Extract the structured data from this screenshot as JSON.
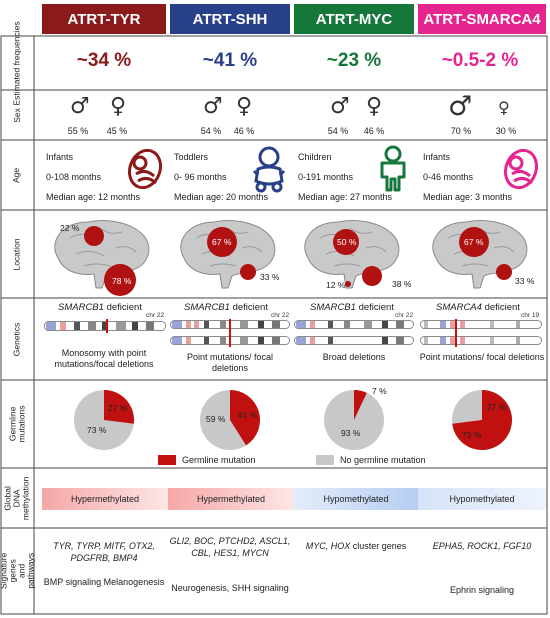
{
  "headers": [
    {
      "label": "ATRT-TYR",
      "color": "#8b1a1a"
    },
    {
      "label": "ATRT-SHH",
      "color": "#283f8a"
    },
    {
      "label": "ATRT-MYC",
      "color": "#15773a"
    },
    {
      "label": "ATRT-SMARCA4",
      "color": "#e5248f"
    }
  ],
  "row_labels": {
    "frequencies": "Estimated frequencies",
    "sex": "Sex",
    "age": "Age",
    "location": "Location",
    "genetics": "Genetics",
    "germline": "Germline mutations",
    "methylation": "Global DNA methylation",
    "signature": "Signature genes and pathways"
  },
  "frequencies": [
    {
      "value": "~34 %",
      "color": "#8b1a1a"
    },
    {
      "value": "~41 %",
      "color": "#283f8a"
    },
    {
      "value": "~23 %",
      "color": "#15773a"
    },
    {
      "value": "~0.5-2 %",
      "color": "#e5248f"
    }
  ],
  "sex": [
    {
      "male": "55 %",
      "female": "45 %"
    },
    {
      "male": "54 %",
      "female": "46 %"
    },
    {
      "male": "54 %",
      "female": "46 %"
    },
    {
      "male": "70 %",
      "female": "30 %"
    }
  ],
  "age": [
    {
      "group": "Infants",
      "range": "0-108 months",
      "median": "Median age: 12 months",
      "icon": "infant-icon",
      "color": "#8b1a1a"
    },
    {
      "group": "Toddlers",
      "range": "0- 96 months",
      "median": "Median age: 20 months",
      "icon": "toddler-icon",
      "color": "#283f8a"
    },
    {
      "group": "Children",
      "range": "0-191 months",
      "median": "Median age: 27 months",
      "icon": "child-icon",
      "color": "#15773a"
    },
    {
      "group": "Infants",
      "range": "0-46 months",
      "median": "Median age: 3 months",
      "icon": "infant-icon",
      "color": "#e5248f"
    }
  ],
  "location": [
    {
      "labels": [
        "22 %",
        "78 %"
      ]
    },
    {
      "labels": [
        "67 %",
        "33 %"
      ]
    },
    {
      "labels": [
        "50 %",
        "12 %",
        "38 %"
      ]
    },
    {
      "labels": [
        "67 %",
        "33 %"
      ]
    }
  ],
  "genetics": [
    {
      "gene": "SMARCB1",
      "suffix": " deficient",
      "chr": "chr 22",
      "description": "Monosomy with point mutations/focal deletions"
    },
    {
      "gene": "SMARCB1",
      "suffix": " deficient",
      "chr": "chr 22",
      "description": "Point mutations/ focal deletions"
    },
    {
      "gene": "SMARCB1",
      "suffix": " deficient",
      "chr": "chr 22",
      "description": "Broad deletions"
    },
    {
      "gene": "SMARCA4",
      "suffix": " deficient",
      "chr": "chr 19",
      "description": "Point mutations/ focal deletions"
    }
  ],
  "germline": [
    {
      "germline_pct": 27,
      "no_germline_pct": 73,
      "label_g": "27 %",
      "label_n": "73 %"
    },
    {
      "germline_pct": 41,
      "no_germline_pct": 59,
      "label_g": "41 %",
      "label_n": "59 %"
    },
    {
      "germline_pct": 7,
      "no_germline_pct": 93,
      "label_g": "7 %",
      "label_n": "93 %"
    },
    {
      "germline_pct": 73,
      "no_germline_pct": 27,
      "label_g": "73 %",
      "label_n": "27 %"
    }
  ],
  "legend": {
    "germline": "Germline mutation",
    "germline_color": "#c0100f",
    "no_germline": "No germline mutation",
    "no_germline_color": "#c8c8c8"
  },
  "methylation": [
    "Hypermethylated",
    "Hypermethylated",
    "Hypomethylated",
    "Hypomethylated"
  ],
  "signature": [
    {
      "genes": "TYR, TYRP, MITF, OTX2, PDGFRB, BMP4",
      "pathways": "BMP signaling Melanogenesis"
    },
    {
      "genes": "GLI2, BOC, PTCHD2, ASCL1, CBL, HES1, MYCN",
      "pathways": "Neurogenesis, SHH signaling"
    },
    {
      "genes": "MYC, HOX",
      "genes_suffix": " cluster genes",
      "pathways": ""
    },
    {
      "genes": "EPHA5, ROCK1, FGF10",
      "pathways": "Ephrin signaling"
    }
  ]
}
